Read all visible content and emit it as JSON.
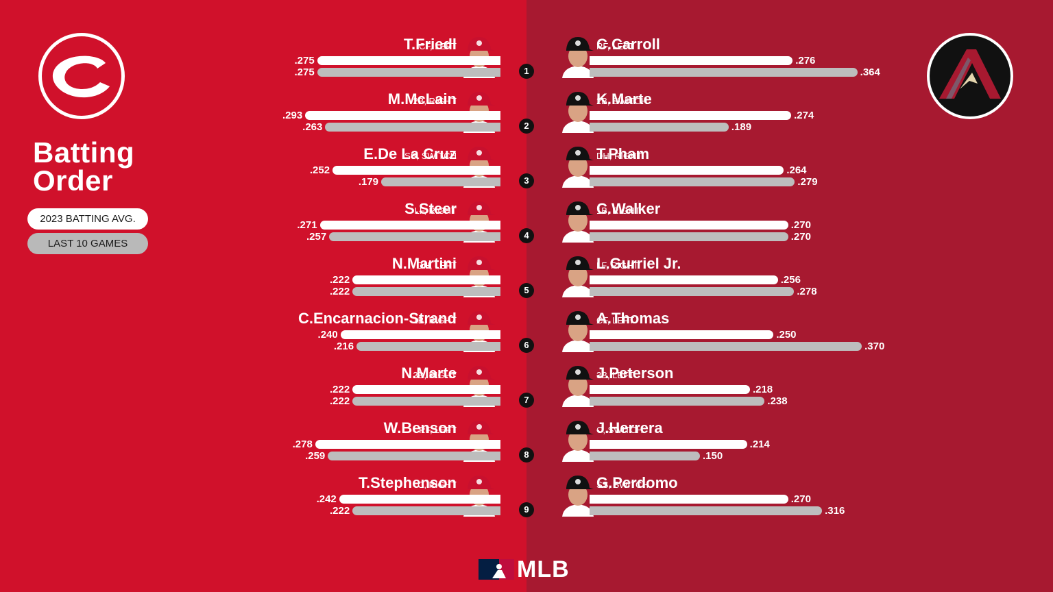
{
  "title": {
    "line1": "Batting",
    "line2": "Order"
  },
  "legend": {
    "primary": "2023 BATTING AVG.",
    "secondary": "LAST 10 GAMES"
  },
  "brand": {
    "mlb_label": "MLB"
  },
  "colors": {
    "reds_red": "#d0112b",
    "dbacks_red": "#a71930",
    "bar_primary": "#ffffff",
    "bar_secondary": "#bdbdbd"
  },
  "icons": {
    "reds": "reds-logo-icon",
    "dbacks": "dbacks-logo-icon",
    "mlb": "mlb-logo-icon"
  },
  "chart_data": {
    "type": "bar",
    "orientation": "horizontal-diverging",
    "value_range": [
      0,
      0.4
    ],
    "series_labels": [
      "2023 BATTING AVG.",
      "LAST 10 GAMES"
    ],
    "order": [
      "1",
      "2",
      "3",
      "4",
      "5",
      "6",
      "7",
      "8",
      "9"
    ],
    "left_team": [
      {
        "name": "T.Friedl",
        "pos": "CF, LEFT",
        "avg": ".275",
        "last10": ".275"
      },
      {
        "name": "M.McLain",
        "pos": "2B, RIGHT",
        "avg": ".293",
        "last10": ".263"
      },
      {
        "name": "E.De La Cruz",
        "pos": "SS, SWITCH",
        "avg": ".252",
        "last10": ".179"
      },
      {
        "name": "S.Steer",
        "pos": "LF, RIGHT",
        "avg": ".271",
        "last10": ".257"
      },
      {
        "name": "N.Martini",
        "pos": "DH, LEFT",
        "avg": ".222",
        "last10": ".222"
      },
      {
        "name": "C.Encarnacion-Strand",
        "pos": "1B, RIGHT",
        "avg": ".240",
        "last10": ".216"
      },
      {
        "name": "N.Marte",
        "pos": "3B, RIGHT",
        "avg": ".222",
        "last10": ".222"
      },
      {
        "name": "W.Benson",
        "pos": "RF, LEFT",
        "avg": ".278",
        "last10": ".259"
      },
      {
        "name": "T.Stephenson",
        "pos": "C, RIGHT",
        "avg": ".242",
        "last10": ".222"
      }
    ],
    "right_team": [
      {
        "name": "C.Carroll",
        "pos": "RF, LEFT",
        "avg": ".276",
        "last10": ".364"
      },
      {
        "name": "K.Marte",
        "pos": "2B, SWITCH",
        "avg": ".274",
        "last10": ".189"
      },
      {
        "name": "T.Pham",
        "pos": "DH, RIGHT",
        "avg": ".264",
        "last10": ".279"
      },
      {
        "name": "C.Walker",
        "pos": "1B, RIGHT",
        "avg": ".270",
        "last10": ".270"
      },
      {
        "name": "L.Gurriel Jr.",
        "pos": "LF, RIGHT",
        "avg": ".256",
        "last10": ".278"
      },
      {
        "name": "A.Thomas",
        "pos": "CF, LEFT",
        "avg": ".250",
        "last10": ".370"
      },
      {
        "name": "J.Peterson",
        "pos": "3B, LEFT",
        "avg": ".218",
        "last10": ".238"
      },
      {
        "name": "J.Herrera",
        "pos": "C, SWITCH",
        "avg": ".214",
        "last10": ".150"
      },
      {
        "name": "G.Perdomo",
        "pos": "SS, SWITCH",
        "avg": ".270",
        "last10": ".316"
      }
    ]
  }
}
